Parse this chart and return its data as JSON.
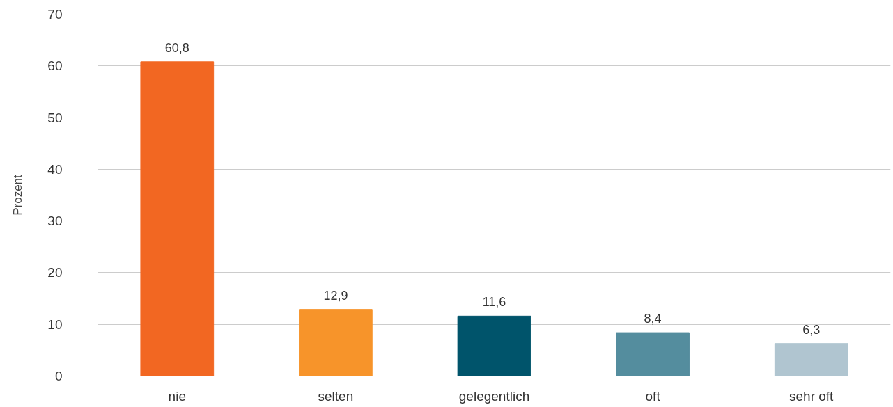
{
  "chart_data": {
    "type": "bar",
    "ylabel": "Prozent",
    "categories": [
      "nie",
      "selten",
      "gelegentlich",
      "oft",
      "sehr oft"
    ],
    "values": [
      60.8,
      12.9,
      11.6,
      8.4,
      6.3
    ],
    "colors": [
      "#f26722",
      "#f7942a",
      "#00546b",
      "#548d9e",
      "#b0c5d0"
    ],
    "value_labels": [
      "60,8",
      "12,9",
      "11,6",
      "8,4",
      "6,3"
    ],
    "ylim": [
      0,
      70
    ],
    "yticks": [
      0,
      10,
      20,
      30,
      40,
      50,
      60,
      70
    ],
    "grid": "y"
  }
}
